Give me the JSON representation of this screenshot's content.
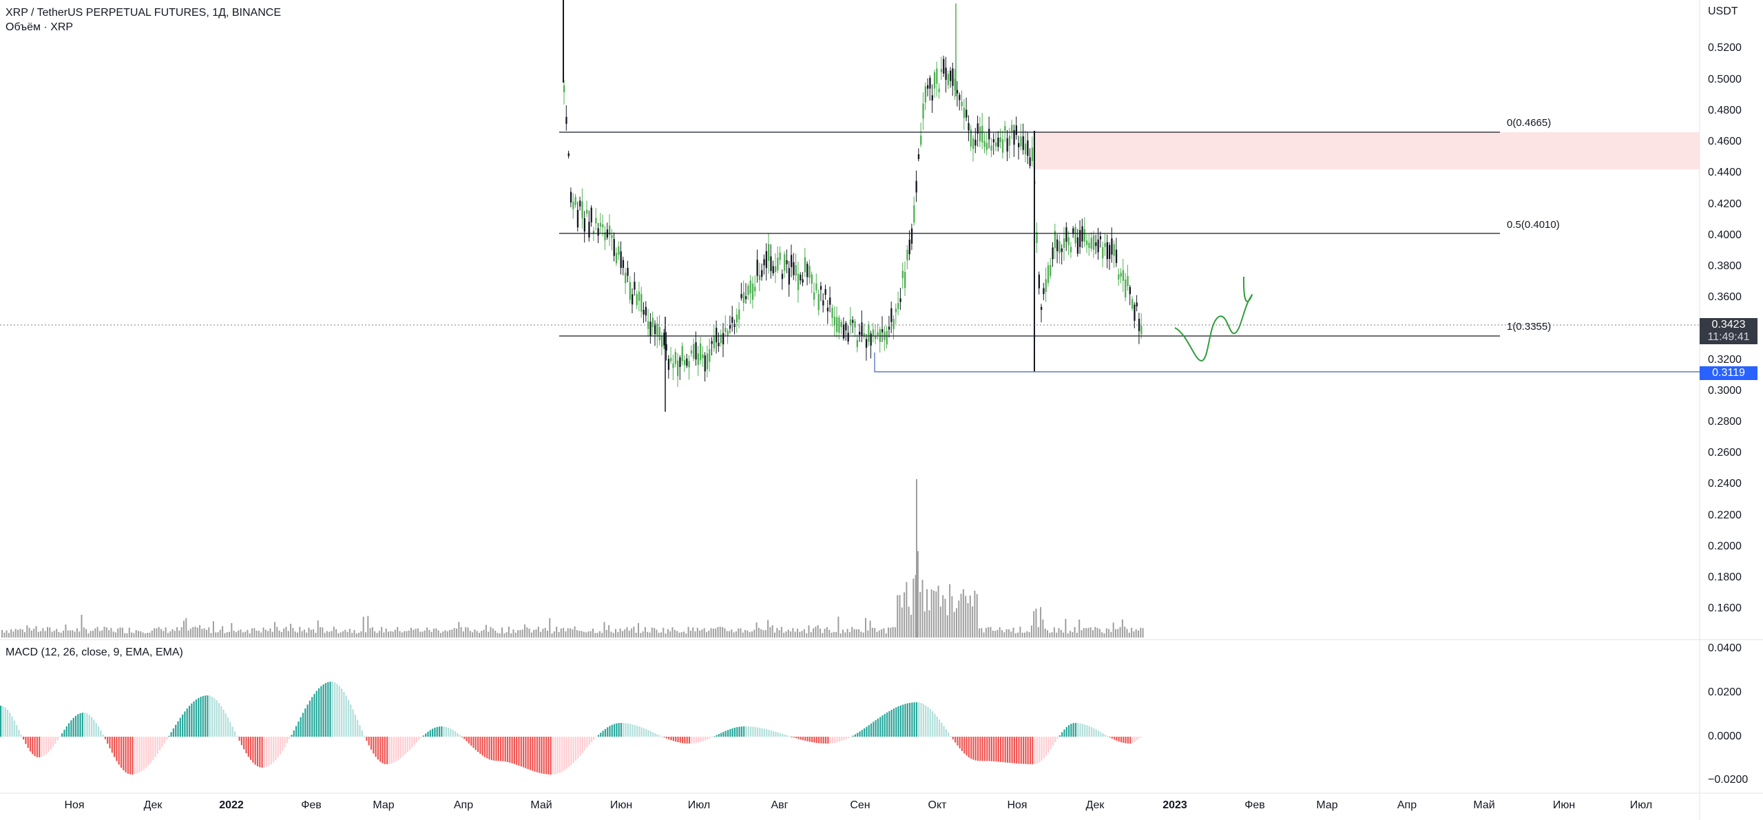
{
  "header": {
    "title": "XRP / TetherUS PERPETUAL FUTURES, 1Д, BINANCE",
    "volume_label": "Объём · XRP",
    "macd_label": "MACD (12, 26, close, 9, EMA, EMA)"
  },
  "price_axis": {
    "currency": "USDT",
    "ticks": [
      "0.5200",
      "0.5000",
      "0.4800",
      "0.4600",
      "0.4400",
      "0.4200",
      "0.4000",
      "0.3800",
      "0.3600",
      "0.3200",
      "0.3000",
      "0.2800",
      "0.2600",
      "0.2400",
      "0.2200",
      "0.2000",
      "0.1800",
      "0.1600"
    ],
    "current_price": "0.3423",
    "countdown": "11:49:41",
    "level_badge": "0.3119"
  },
  "macd_axis": {
    "ticks": [
      "0.0400",
      "0.0200",
      "0.0000",
      "−0.0200"
    ]
  },
  "fib_levels": [
    {
      "label": "0(0.4665)",
      "price": 0.4665
    },
    {
      "label": "0.5(0.4010)",
      "price": 0.401
    },
    {
      "label": "1(0.3355)",
      "price": 0.3355
    }
  ],
  "time_axis": {
    "labels": [
      "Ноя",
      "Дек",
      "2022",
      "Фев",
      "Мар",
      "Апр",
      "Май",
      "Июн",
      "Июл",
      "Авг",
      "Сен",
      "Окт",
      "Ноя",
      "Дек",
      "2023",
      "Фев",
      "Мар",
      "Апр",
      "Май",
      "Июн",
      "Июл"
    ]
  },
  "colors": {
    "up": "#26a69a",
    "down": "#ef5350",
    "candle_up": "#4caf50",
    "candle_down": "#131722",
    "accent": "#2962ff",
    "zone": "#fde4e4",
    "volume": "#9e9e9e"
  }
}
